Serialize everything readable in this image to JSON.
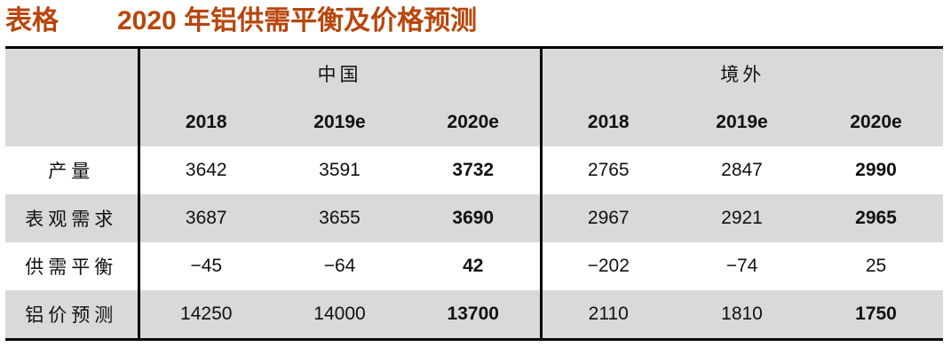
{
  "header": {
    "label": "表格",
    "title": "2020 年铝供需平衡及价格预测"
  },
  "table": {
    "groups": [
      "中国",
      "境外"
    ],
    "columns": [
      "2018",
      "2019e",
      "2020e",
      "2018",
      "2019e",
      "2020e"
    ],
    "rows": [
      {
        "label": "产量",
        "cells": [
          "3642",
          "3591",
          "3732",
          "2765",
          "2847",
          "2990"
        ]
      },
      {
        "label": "表观需求",
        "cells": [
          "3687",
          "3655",
          "3690",
          "2967",
          "2921",
          "2965"
        ]
      },
      {
        "label": "供需平衡",
        "cells": [
          "−45",
          "−64",
          "42",
          "−202",
          "−74",
          "25"
        ]
      },
      {
        "label": "铝价预测",
        "cells": [
          "14250",
          "14000",
          "13700",
          "2110",
          "1810",
          "1750"
        ]
      }
    ]
  }
}
